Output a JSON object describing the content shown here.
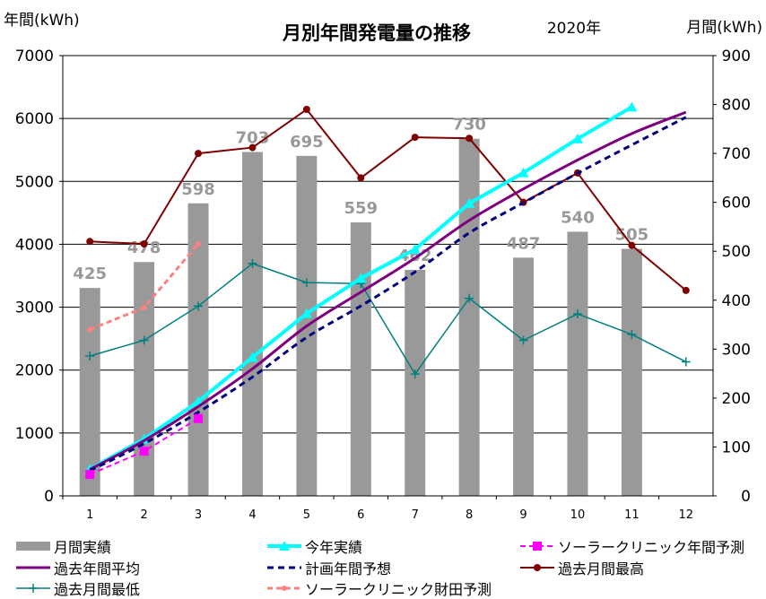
{
  "chart_data": {
    "type": "bar",
    "title": "月別年間発電量の推移",
    "year_label": "2020年",
    "ylabel_left": "年間(kWh)",
    "ylabel_right": "月間(kWh)",
    "ylim_left": [
      0,
      7000
    ],
    "ylim_right": [
      0,
      900
    ],
    "yticks_left": [
      "0",
      "1000",
      "2000",
      "3000",
      "4000",
      "5000",
      "6000",
      "7000"
    ],
    "yticks_right": [
      "0",
      "100",
      "200",
      "300",
      "400",
      "500",
      "600",
      "700",
      "800",
      "900"
    ],
    "categories": [
      "1",
      "2",
      "3",
      "4",
      "5",
      "6",
      "7",
      "8",
      "9",
      "10",
      "11",
      "12"
    ],
    "grid": true,
    "legend_position": "bottom",
    "colors": {
      "bar": "#999999",
      "bar_label": "#999999",
      "actual": "#00ffff",
      "projection_yearly": "#ff00ff",
      "past_avg": "#7f007f",
      "plan": "#000080",
      "past_max": "#800000",
      "past_min": "#007f7f",
      "projection_zaidan": "#ff8080"
    },
    "monthly_bars": {
      "name": "月間実績",
      "axis": "right",
      "values": [
        425,
        478,
        598,
        703,
        695,
        559,
        462,
        730,
        487,
        540,
        505,
        null
      ],
      "labels": [
        "425",
        "478",
        "598",
        "703",
        "695",
        "559",
        "462",
        "730",
        "487",
        "540",
        "505",
        ""
      ]
    },
    "series": [
      {
        "key": "actual",
        "name": "今年実績",
        "axis": "left",
        "style": "solid-triangle",
        "values": [
          425,
          903,
          1501,
          2204,
          2899,
          3458,
          3920,
          4650,
          5137,
          5677,
          6182,
          null
        ]
      },
      {
        "key": "projection_yearly",
        "name": "ソーラークリニック年間予測",
        "axis": "left",
        "style": "dashed-square",
        "values": [
          340,
          710,
          1230,
          null,
          null,
          null,
          null,
          null,
          null,
          null,
          null,
          null
        ]
      },
      {
        "key": "past_avg",
        "name": "過去年間平均",
        "axis": "left",
        "style": "solid",
        "values": [
          420,
          880,
          1420,
          2020,
          2700,
          3240,
          3780,
          4380,
          4880,
          5340,
          5760,
          6100
        ]
      },
      {
        "key": "plan",
        "name": "計画年間予想",
        "axis": "left",
        "style": "dashed",
        "values": [
          400,
          830,
          1330,
          1890,
          2520,
          3020,
          3560,
          4180,
          4660,
          5130,
          5580,
          6020
        ]
      },
      {
        "key": "past_max",
        "name": "過去月間最高",
        "axis": "right",
        "style": "solid-circle",
        "values": [
          520,
          515,
          700,
          712,
          790,
          650,
          733,
          731,
          600,
          660,
          512,
          420
        ]
      },
      {
        "key": "past_min",
        "name": "過去月間最低",
        "axis": "right",
        "style": "solid-plus",
        "values": [
          286,
          318,
          388,
          475,
          436,
          434,
          249,
          404,
          318,
          372,
          330,
          274
        ]
      },
      {
        "key": "projection_zaidan",
        "name": "ソーラークリニック財田予測",
        "axis": "right",
        "style": "dashed-dot",
        "values": [
          340,
          385,
          515,
          null,
          null,
          null,
          null,
          null,
          null,
          null,
          null,
          null
        ]
      }
    ]
  }
}
